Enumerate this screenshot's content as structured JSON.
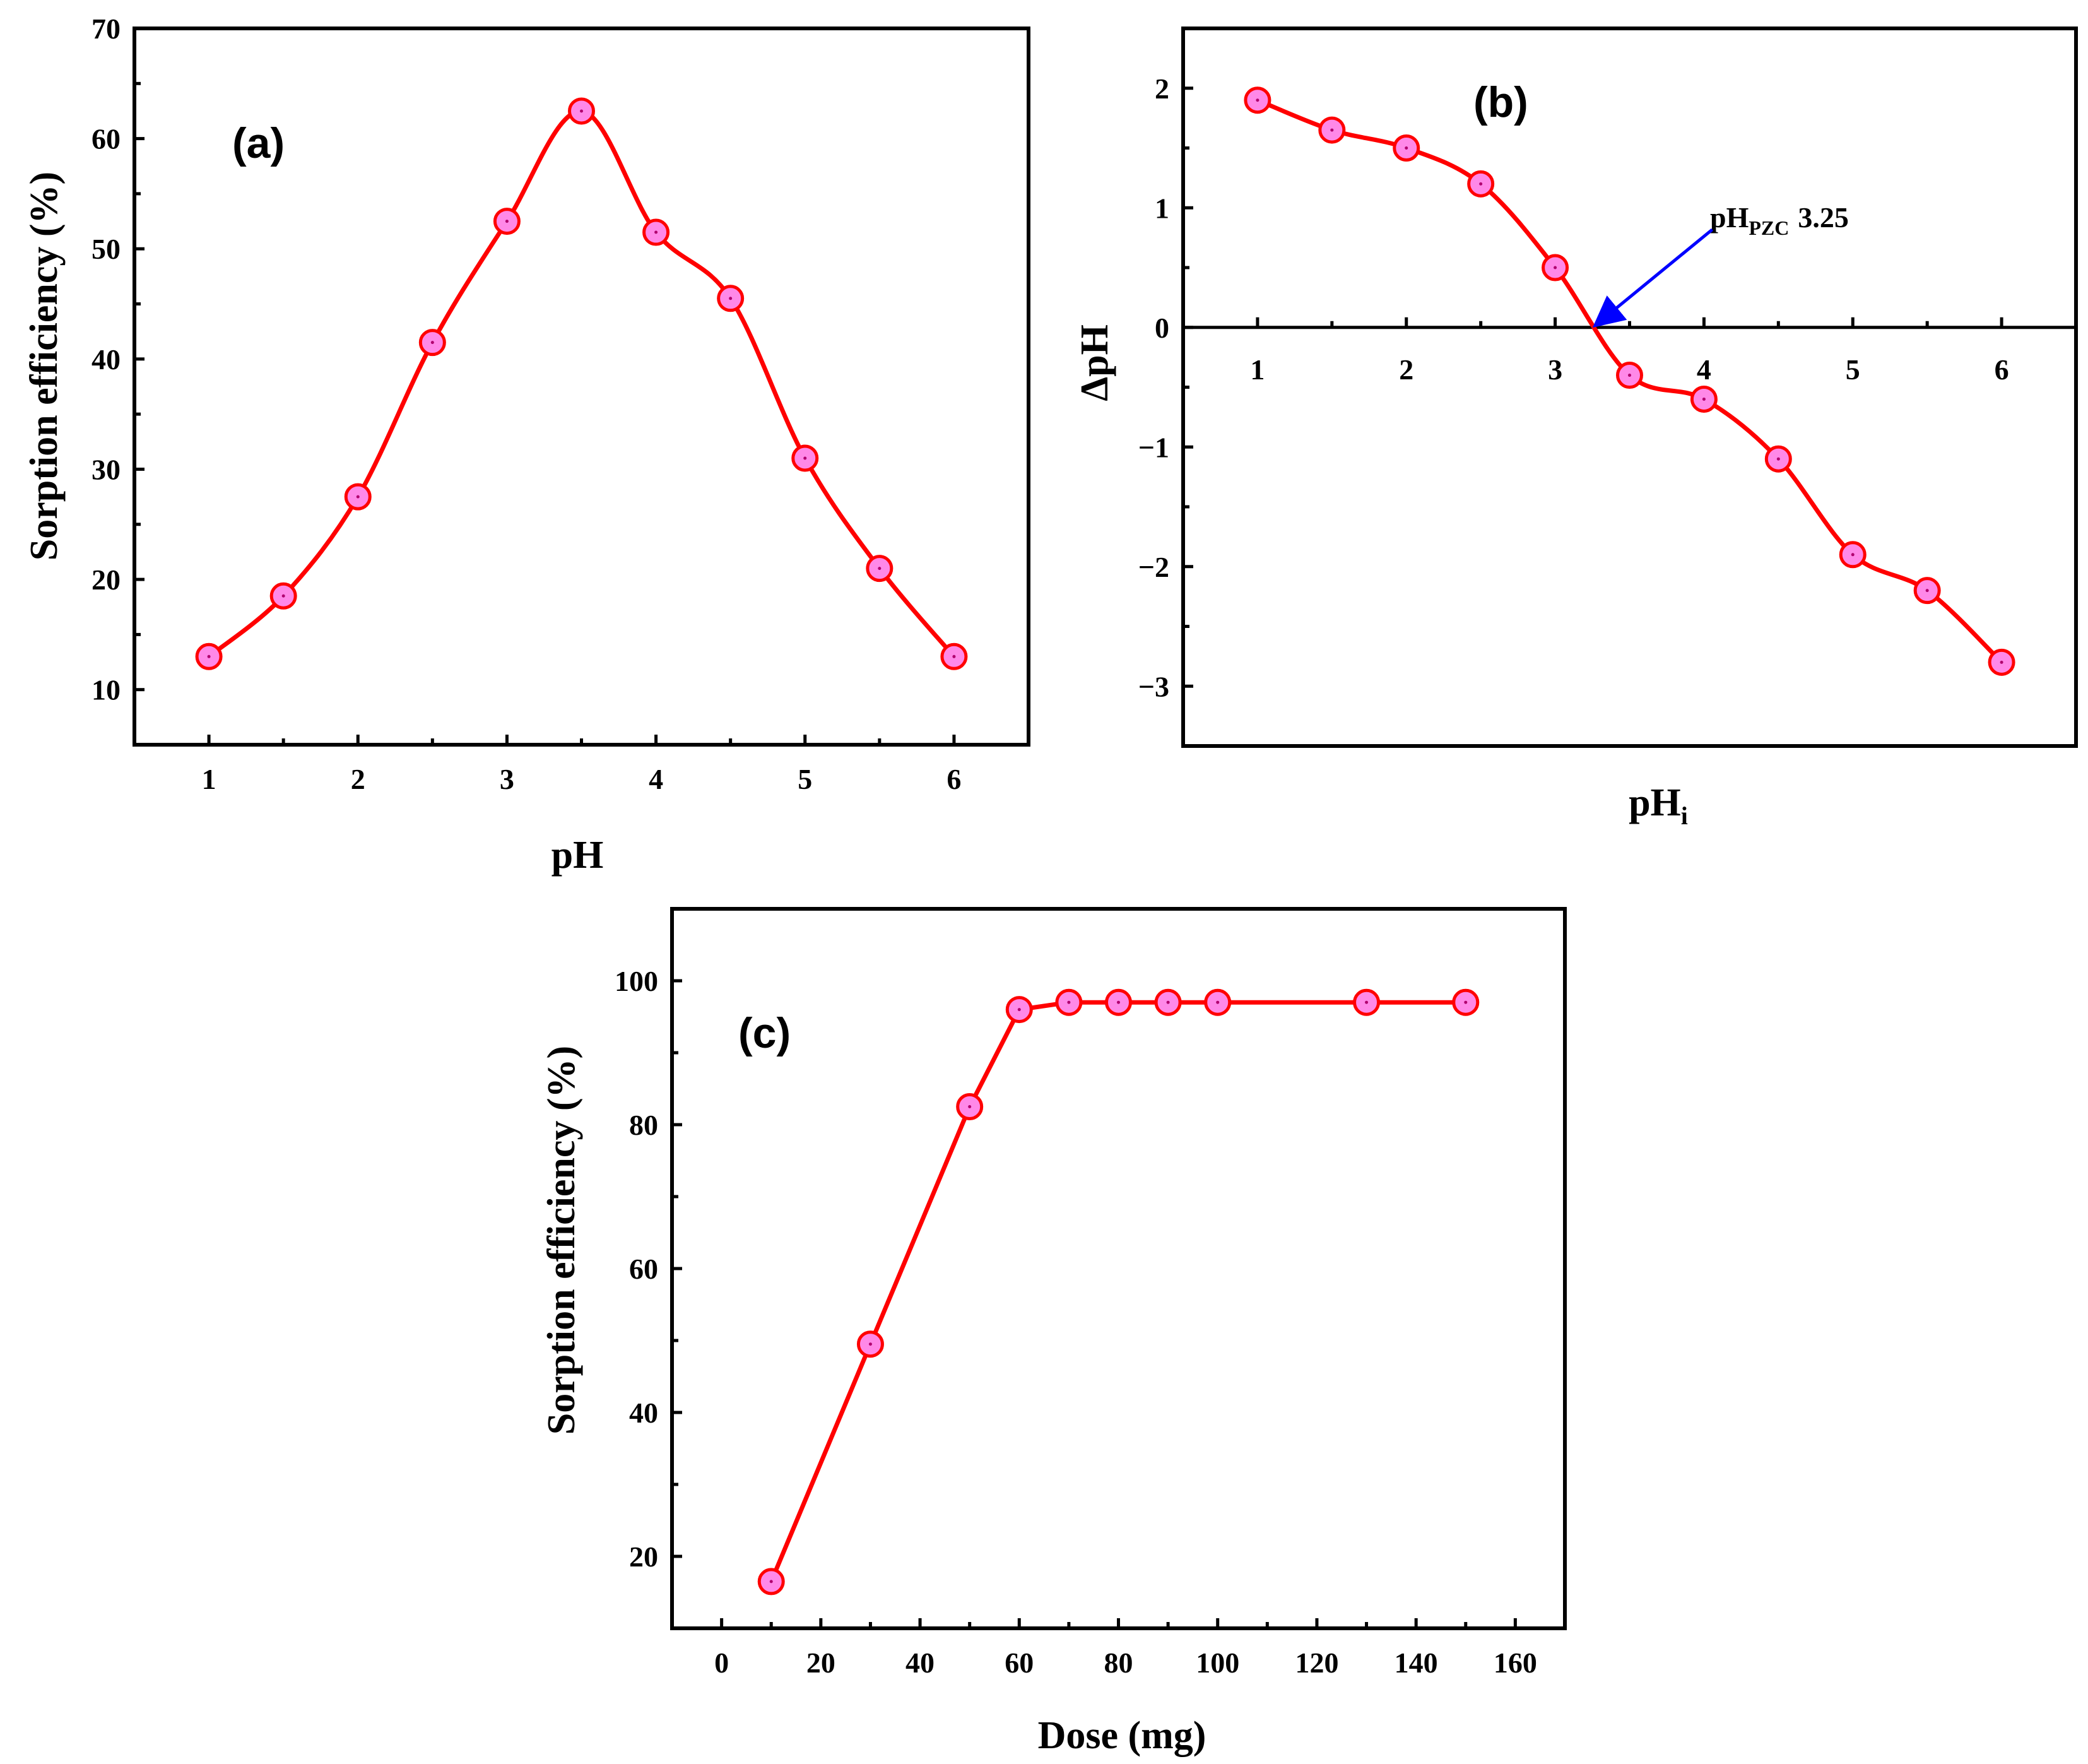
{
  "colors": {
    "line": "#ff0000",
    "marker_fill": "#ff88e8",
    "marker_edge": "#ff0000",
    "arrow": "#0000ff",
    "axis": "#000000"
  },
  "chart_data": [
    {
      "id": "a",
      "type": "line",
      "panel_label": "(a)",
      "xlabel": "pH",
      "ylabel": "Sorption efficiency (%)",
      "xlim": [
        0.5,
        6.5
      ],
      "ylim": [
        5,
        70
      ],
      "xticks": [
        1,
        2,
        3,
        4,
        5,
        6
      ],
      "yticks": [
        10,
        20,
        30,
        40,
        50,
        60,
        70
      ],
      "x": [
        1,
        1.5,
        2,
        2.5,
        3,
        3.5,
        4,
        4.5,
        5,
        5.5,
        6
      ],
      "y": [
        13,
        18.5,
        27.5,
        41.5,
        52.5,
        62.5,
        51.5,
        45.5,
        31,
        21,
        13
      ]
    },
    {
      "id": "b",
      "type": "line",
      "panel_label": "(b)",
      "xlabel": "pH",
      "xlabel_sub": "i",
      "ylabel": "ΔpH",
      "xlim": [
        0.5,
        6.5
      ],
      "ylim": [
        -3.5,
        2.5
      ],
      "xticks": [
        1,
        2,
        3,
        4,
        5,
        6
      ],
      "yticks": [
        2,
        1,
        0,
        -1,
        -2,
        -3
      ],
      "ytick_labels": [
        "2",
        "1",
        "0",
        "−1",
        "−2",
        "−3"
      ],
      "x": [
        1,
        1.5,
        2,
        2.5,
        3,
        3.5,
        4,
        4.5,
        5,
        5.5,
        6
      ],
      "y": [
        1.9,
        1.65,
        1.5,
        1.2,
        0.5,
        -0.4,
        -0.6,
        -1.1,
        -1.9,
        -2.2,
        -2.8
      ],
      "annotation": {
        "prefix": "pH",
        "sub": "PZC",
        "value": "3.25",
        "point_x": 3.25,
        "point_y": 0
      }
    },
    {
      "id": "c",
      "type": "line",
      "panel_label": "(c)",
      "xlabel": "Dose (mg)",
      "ylabel": "Sorption efficiency (%)",
      "xlim": [
        -10,
        170
      ],
      "ylim": [
        10,
        110
      ],
      "xticks": [
        0,
        20,
        40,
        60,
        80,
        100,
        120,
        140,
        160
      ],
      "yticks": [
        20,
        40,
        60,
        80,
        100
      ],
      "x": [
        10,
        30,
        50,
        60,
        70,
        80,
        90,
        100,
        130,
        150
      ],
      "y": [
        16.5,
        49.5,
        82.5,
        96,
        97,
        97,
        97,
        97,
        97,
        97
      ]
    }
  ]
}
